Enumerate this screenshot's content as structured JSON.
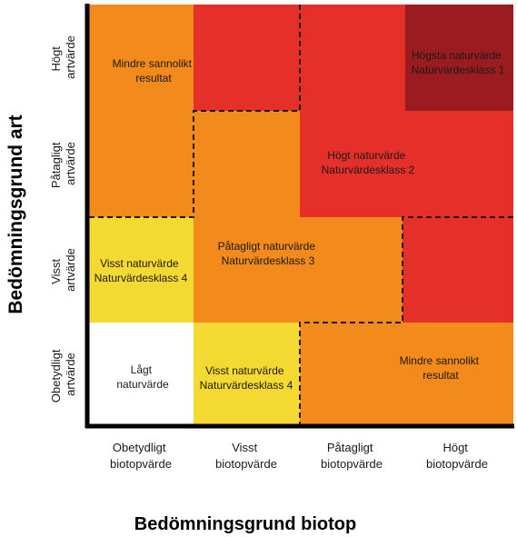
{
  "colors": {
    "light_orange": "#f28a1c",
    "red": "#e5302a",
    "dark_red": "#9b1c20",
    "yellow": "#f4d933",
    "white": "#ffffff",
    "axis": "#000000"
  },
  "axes": {
    "y_title": "Bedömningsgrund art",
    "x_title": "Bedömningsgrund biotop",
    "y_levels": [
      {
        "line1": "Högt",
        "line2": "artvärde"
      },
      {
        "line1": "Påtagligt",
        "line2": "artvärde"
      },
      {
        "line1": "Visst",
        "line2": "artvärde"
      },
      {
        "line1": "Obetydligt",
        "line2": "artvärde"
      }
    ],
    "x_levels": [
      {
        "line1": "Obetydligt",
        "line2": "biotopvärde"
      },
      {
        "line1": "Visst",
        "line2": "biotopvärde"
      },
      {
        "line1": "Påtagligt",
        "line2": "biotopvärde"
      },
      {
        "line1": "Högt",
        "line2": "biotopvärde"
      }
    ]
  },
  "regions": [
    {
      "name": "region-mindre-sannolikt-top",
      "color": "light_orange",
      "line1": "Mindre sannolikt",
      "line2": "resultat"
    },
    {
      "name": "region-hogt-naturvarde",
      "color": "red",
      "line1": "Högt  naturvärde",
      "line2": "Naturvärdesklass 2"
    },
    {
      "name": "region-hogsta-naturvarde",
      "color": "dark_red",
      "line1": "Högsta  naturvärde",
      "line2": "Naturvärdesklass 1"
    },
    {
      "name": "region-patagligt-naturvarde",
      "color": "light_orange",
      "line1": "Påtagligt naturvärde",
      "line2": "Naturvärdesklass 3"
    },
    {
      "name": "region-visst-naturvarde-left",
      "color": "yellow",
      "line1": "Visst naturvärde",
      "line2": "Naturvärdesklass 4"
    },
    {
      "name": "region-lagt-naturvarde",
      "color": "white",
      "line1": "Lågt",
      "line2": "naturvärde"
    },
    {
      "name": "region-visst-naturvarde-bottom",
      "color": "yellow",
      "line1": "Visst naturvärde",
      "line2": "Naturvärdesklass 4"
    },
    {
      "name": "region-mindre-sannolikt-bottom",
      "color": "light_orange",
      "line1": "Mindre sannolikt",
      "line2": "resultat"
    },
    {
      "name": "region-hogt-naturvarde-right",
      "color": "red",
      "line1": "",
      "line2": ""
    }
  ]
}
